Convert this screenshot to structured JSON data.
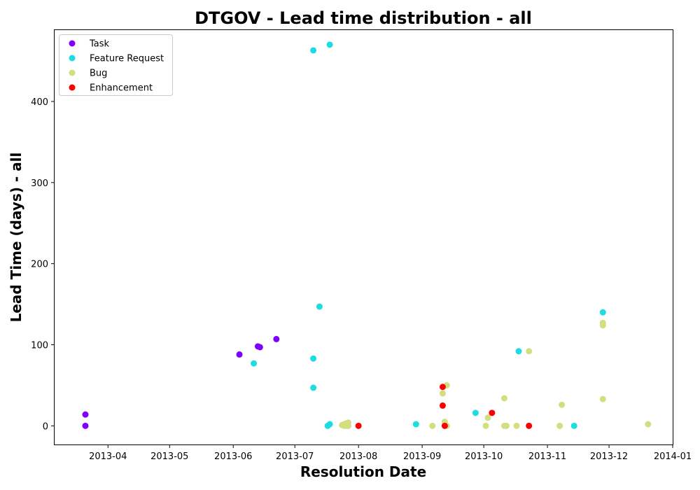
{
  "chart_data": {
    "type": "scatter",
    "title": "DTGOV - Lead time distribution - all",
    "xlabel": "Resolution Date",
    "ylabel": "Lead Time (days) - all",
    "x_type": "date",
    "xlim": [
      "2013-03-06",
      "2014-01-01"
    ],
    "ylim": [
      -23,
      488
    ],
    "x_ticks": [
      "2013-04-01",
      "2013-05-01",
      "2013-06-01",
      "2013-07-01",
      "2013-08-01",
      "2013-09-01",
      "2013-10-01",
      "2013-11-01",
      "2013-12-01",
      "2014-01-01"
    ],
    "x_tick_labels": [
      "2013-04",
      "2013-05",
      "2013-06",
      "2013-07",
      "2013-08",
      "2013-09",
      "2013-10",
      "2013-11",
      "2013-12",
      "2014-01"
    ],
    "y_ticks": [
      0,
      100,
      200,
      300,
      400
    ],
    "y_tick_labels": [
      "0",
      "100",
      "200",
      "300",
      "400"
    ],
    "grid": false,
    "legend_position": "top-left",
    "series": [
      {
        "name": "Task",
        "color": "#8000ff",
        "points": [
          {
            "x": "2013-03-21",
            "y": 14
          },
          {
            "x": "2013-03-21",
            "y": 0
          },
          {
            "x": "2013-06-04",
            "y": 88
          },
          {
            "x": "2013-06-13",
            "y": 98
          },
          {
            "x": "2013-06-14",
            "y": 97
          },
          {
            "x": "2013-06-22",
            "y": 107
          }
        ]
      },
      {
        "name": "Feature Request",
        "color": "#1ddde1",
        "points": [
          {
            "x": "2013-07-10",
            "y": 463
          },
          {
            "x": "2013-07-18",
            "y": 470
          },
          {
            "x": "2013-07-13",
            "y": 147
          },
          {
            "x": "2013-07-10",
            "y": 83
          },
          {
            "x": "2013-06-11",
            "y": 77
          },
          {
            "x": "2013-07-10",
            "y": 47
          },
          {
            "x": "2013-07-17",
            "y": 0
          },
          {
            "x": "2013-07-18",
            "y": 2
          },
          {
            "x": "2013-08-29",
            "y": 2
          },
          {
            "x": "2013-09-27",
            "y": 16
          },
          {
            "x": "2013-10-18",
            "y": 92
          },
          {
            "x": "2013-11-14",
            "y": 0
          },
          {
            "x": "2013-11-28",
            "y": 140
          }
        ]
      },
      {
        "name": "Bug",
        "color": "#d4dd80",
        "points": [
          {
            "x": "2013-07-24",
            "y": 1
          },
          {
            "x": "2013-07-25",
            "y": 0
          },
          {
            "x": "2013-07-25",
            "y": 2
          },
          {
            "x": "2013-07-26",
            "y": 3
          },
          {
            "x": "2013-07-26",
            "y": 0
          },
          {
            "x": "2013-07-27",
            "y": 4
          },
          {
            "x": "2013-07-27",
            "y": 0
          },
          {
            "x": "2013-09-06",
            "y": 0
          },
          {
            "x": "2013-09-11",
            "y": 40
          },
          {
            "x": "2013-09-13",
            "y": 50
          },
          {
            "x": "2013-09-12",
            "y": 5
          },
          {
            "x": "2013-09-13",
            "y": 0
          },
          {
            "x": "2013-10-02",
            "y": 0
          },
          {
            "x": "2013-10-03",
            "y": 10
          },
          {
            "x": "2013-10-11",
            "y": 34
          },
          {
            "x": "2013-10-11",
            "y": 0
          },
          {
            "x": "2013-10-12",
            "y": 0
          },
          {
            "x": "2013-10-17",
            "y": 0
          },
          {
            "x": "2013-10-23",
            "y": 92
          },
          {
            "x": "2013-11-07",
            "y": 0
          },
          {
            "x": "2013-11-08",
            "y": 26
          },
          {
            "x": "2013-11-28",
            "y": 127
          },
          {
            "x": "2013-11-28",
            "y": 124
          },
          {
            "x": "2013-11-28",
            "y": 33
          },
          {
            "x": "2013-12-20",
            "y": 2
          }
        ]
      },
      {
        "name": "Enhancement",
        "color": "#ff0000",
        "points": [
          {
            "x": "2013-08-01",
            "y": 0
          },
          {
            "x": "2013-09-11",
            "y": 48
          },
          {
            "x": "2013-09-11",
            "y": 25
          },
          {
            "x": "2013-09-12",
            "y": 0
          },
          {
            "x": "2013-10-05",
            "y": 16
          },
          {
            "x": "2013-10-23",
            "y": 0
          }
        ]
      }
    ]
  }
}
